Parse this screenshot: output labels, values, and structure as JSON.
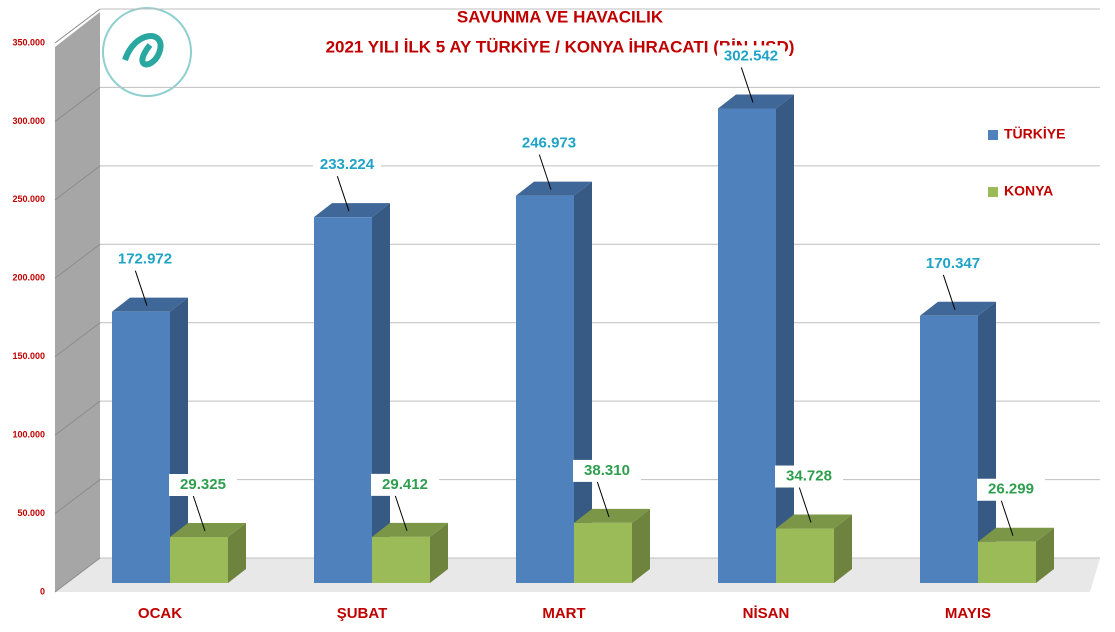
{
  "chart_data": {
    "type": "bar3d",
    "title": "SAVUNMA VE HAVACILIK",
    "subtitle": "2021 YILI İLK 5 AY TÜRKİYE / KONYA İHRACATI (BİN USD)",
    "categories": [
      "OCAK",
      "ŞUBAT",
      "MART",
      "NİSAN",
      "MAYIS"
    ],
    "series": [
      {
        "name": "TÜRKİYE",
        "color": "#4f81bd",
        "values": [
          172972,
          233224,
          246973,
          302542,
          170347
        ],
        "value_labels": [
          "172.972",
          "233.224",
          "246.973",
          "302.542",
          "170.347"
        ]
      },
      {
        "name": "KONYA",
        "color": "#9bbb59",
        "values": [
          29325,
          29412,
          38310,
          34728,
          26299
        ],
        "value_labels": [
          "29.325",
          "29.412",
          "38.310",
          "34.728",
          "26.299"
        ]
      }
    ],
    "ylim": [
      0,
      350000
    ],
    "yticks": [
      0,
      {
        "value": 50000,
        "label": "50.000"
      },
      {
        "value": 100000,
        "label": "100.000"
      },
      {
        "value": 150000,
        "label": "150.000"
      },
      {
        "value": 200000,
        "label": "200.000"
      },
      {
        "value": 250000,
        "label": "250.000"
      },
      {
        "value": 300000,
        "label": "300.000"
      },
      {
        "value": 350000,
        "label": "350.000"
      }
    ],
    "grid": true,
    "legend": "right"
  }
}
